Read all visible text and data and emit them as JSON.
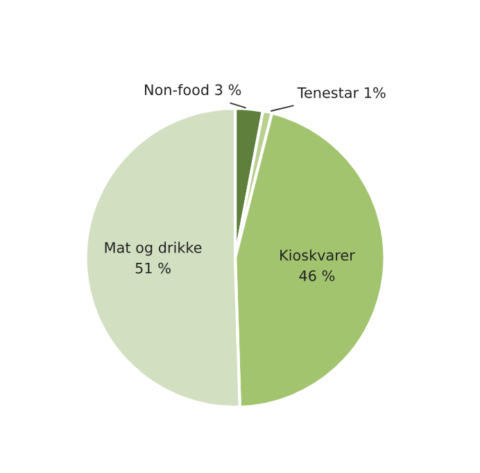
{
  "chart_data": {
    "type": "pie",
    "categories": [
      "Non-food",
      "Tenestar",
      "Kioskvarer",
      "Mat og drikke"
    ],
    "values": [
      3,
      1,
      46,
      51
    ],
    "value_labels": [
      "3 %",
      "1%",
      "46 %",
      "51 %"
    ],
    "colors": [
      "#5f7f3c",
      "#b9d08f",
      "#a3c46f",
      "#d3dfc1"
    ]
  }
}
